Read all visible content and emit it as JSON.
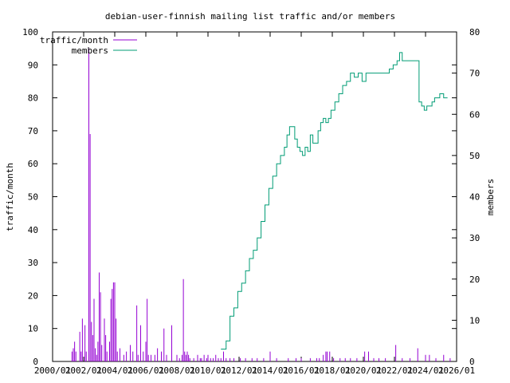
{
  "chart_data": {
    "type": "bar+line",
    "title": "debian-user-finnish mailing list traffic and/or members",
    "ylabel": "traffic/month",
    "y2label": "members",
    "ylim": [
      0,
      100
    ],
    "y2lim": [
      0,
      80
    ],
    "yticks": [
      "0",
      "10",
      "20",
      "30",
      "40",
      "50",
      "60",
      "70",
      "80",
      "90",
      "100"
    ],
    "y2ticks": [
      "0",
      "10",
      "20",
      "30",
      "40",
      "50",
      "60",
      "70",
      "80"
    ],
    "xticks": [
      "2000/01",
      "2002/01",
      "2004/01",
      "2006/01",
      "2008/01",
      "2010/01",
      "2012/01",
      "2014/01",
      "2016/01",
      "2018/01",
      "2020/01",
      "2022/01",
      "2024/01",
      "2026/01"
    ],
    "xrange": [
      "2000-01",
      "2026-01"
    ],
    "legend_placement": "top-left",
    "series": [
      {
        "name": "traffic/month",
        "style": "impulses",
        "color": "#9400d3",
        "points": [
          [
            "2001-04",
            3
          ],
          [
            "2001-05",
            4
          ],
          [
            "2001-06",
            6
          ],
          [
            "2001-07",
            3
          ],
          [
            "2001-10",
            9
          ],
          [
            "2001-11",
            3
          ],
          [
            "2001-12",
            13
          ],
          [
            "2002-02",
            11
          ],
          [
            "2002-03",
            3
          ],
          [
            "2002-05",
            95
          ],
          [
            "2002-06",
            69
          ],
          [
            "2002-07",
            12
          ],
          [
            "2002-08",
            8
          ],
          [
            "2002-09",
            19
          ],
          [
            "2002-10",
            4
          ],
          [
            "2002-11",
            2
          ],
          [
            "2002-12",
            6
          ],
          [
            "2003-01",
            27
          ],
          [
            "2003-02",
            21
          ],
          [
            "2003-03",
            5
          ],
          [
            "2003-05",
            13
          ],
          [
            "2003-06",
            8
          ],
          [
            "2003-07",
            3
          ],
          [
            "2003-09",
            6
          ],
          [
            "2003-10",
            19
          ],
          [
            "2003-11",
            22
          ],
          [
            "2003-12",
            24
          ],
          [
            "2004-01",
            24
          ],
          [
            "2004-02",
            13
          ],
          [
            "2004-03",
            3
          ],
          [
            "2004-05",
            4
          ],
          [
            "2004-08",
            2
          ],
          [
            "2004-10",
            3
          ],
          [
            "2005-01",
            5
          ],
          [
            "2005-03",
            3
          ],
          [
            "2005-06",
            17
          ],
          [
            "2005-07",
            2
          ],
          [
            "2005-09",
            11
          ],
          [
            "2005-11",
            3
          ],
          [
            "2006-01",
            6
          ],
          [
            "2006-02",
            19
          ],
          [
            "2006-03",
            2
          ],
          [
            "2006-05",
            2
          ],
          [
            "2006-08",
            2
          ],
          [
            "2006-10",
            4
          ],
          [
            "2007-01",
            3
          ],
          [
            "2007-03",
            10
          ],
          [
            "2007-05",
            2
          ],
          [
            "2007-09",
            11
          ],
          [
            "2008-01",
            2
          ],
          [
            "2008-03",
            1
          ],
          [
            "2008-05",
            2
          ],
          [
            "2008-06",
            25
          ],
          [
            "2008-07",
            3
          ],
          [
            "2008-08",
            2
          ],
          [
            "2008-09",
            3
          ],
          [
            "2008-10",
            2
          ],
          [
            "2008-11",
            1
          ],
          [
            "2009-02",
            1
          ],
          [
            "2009-05",
            2
          ],
          [
            "2009-07",
            1
          ],
          [
            "2009-08",
            1
          ],
          [
            "2009-10",
            2
          ],
          [
            "2009-12",
            1
          ],
          [
            "2010-01",
            2
          ],
          [
            "2010-03",
            1
          ],
          [
            "2010-05",
            1
          ],
          [
            "2010-07",
            2
          ],
          [
            "2010-09",
            1
          ],
          [
            "2010-11",
            1
          ],
          [
            "2011-01",
            3
          ],
          [
            "2011-03",
            1
          ],
          [
            "2011-06",
            1
          ],
          [
            "2011-09",
            1
          ],
          [
            "2012-02",
            1
          ],
          [
            "2012-06",
            1
          ],
          [
            "2012-11",
            1
          ],
          [
            "2013-03",
            1
          ],
          [
            "2013-08",
            1
          ],
          [
            "2014-01",
            3
          ],
          [
            "2014-06",
            1
          ],
          [
            "2015-03",
            1
          ],
          [
            "2015-09",
            1
          ],
          [
            "2016-01",
            1
          ],
          [
            "2016-08",
            1
          ],
          [
            "2017-01",
            1
          ],
          [
            "2017-03",
            1
          ],
          [
            "2017-06",
            2
          ],
          [
            "2017-08",
            3
          ],
          [
            "2017-09",
            3
          ],
          [
            "2017-11",
            3
          ],
          [
            "2018-02",
            1
          ],
          [
            "2018-07",
            1
          ],
          [
            "2018-11",
            1
          ],
          [
            "2019-03",
            1
          ],
          [
            "2019-08",
            1
          ],
          [
            "2020-02",
            3
          ],
          [
            "2020-05",
            3
          ],
          [
            "2020-09",
            1
          ],
          [
            "2021-01",
            1
          ],
          [
            "2021-06",
            1
          ],
          [
            "2022-02",
            5
          ],
          [
            "2022-07",
            1
          ],
          [
            "2023-01",
            1
          ],
          [
            "2023-07",
            4
          ],
          [
            "2024-01",
            2
          ],
          [
            "2024-04",
            2
          ],
          [
            "2024-09",
            1
          ],
          [
            "2025-03",
            2
          ],
          [
            "2025-08",
            1
          ]
        ]
      },
      {
        "name": "members",
        "style": "steps",
        "color": "#009c75",
        "points": [
          [
            "2010-11",
            3
          ],
          [
            "2011-03",
            5
          ],
          [
            "2011-06",
            11
          ],
          [
            "2011-09",
            13
          ],
          [
            "2011-12",
            17
          ],
          [
            "2012-03",
            19
          ],
          [
            "2012-06",
            22
          ],
          [
            "2012-09",
            25
          ],
          [
            "2012-12",
            27
          ],
          [
            "2013-03",
            30
          ],
          [
            "2013-06",
            34
          ],
          [
            "2013-09",
            38
          ],
          [
            "2013-12",
            42
          ],
          [
            "2014-03",
            45
          ],
          [
            "2014-06",
            48
          ],
          [
            "2014-09",
            50
          ],
          [
            "2014-12",
            52
          ],
          [
            "2015-02",
            55
          ],
          [
            "2015-04",
            57
          ],
          [
            "2015-06",
            57
          ],
          [
            "2015-08",
            54
          ],
          [
            "2015-10",
            52
          ],
          [
            "2015-12",
            51
          ],
          [
            "2016-02",
            50
          ],
          [
            "2016-04",
            52
          ],
          [
            "2016-06",
            51
          ],
          [
            "2016-08",
            55
          ],
          [
            "2016-10",
            53
          ],
          [
            "2016-12",
            53
          ],
          [
            "2017-02",
            56
          ],
          [
            "2017-04",
            58
          ],
          [
            "2017-06",
            59
          ],
          [
            "2017-08",
            58
          ],
          [
            "2017-10",
            59
          ],
          [
            "2017-12",
            61
          ],
          [
            "2018-03",
            63
          ],
          [
            "2018-06",
            65
          ],
          [
            "2018-09",
            67
          ],
          [
            "2018-12",
            68
          ],
          [
            "2019-03",
            70
          ],
          [
            "2019-06",
            69
          ],
          [
            "2019-09",
            70
          ],
          [
            "2019-12",
            68
          ],
          [
            "2020-03",
            70
          ],
          [
            "2020-06",
            70
          ],
          [
            "2020-09",
            70
          ],
          [
            "2020-12",
            70
          ],
          [
            "2021-03",
            70
          ],
          [
            "2021-06",
            70
          ],
          [
            "2021-09",
            71
          ],
          [
            "2021-12",
            72
          ],
          [
            "2022-03",
            73
          ],
          [
            "2022-05",
            75
          ],
          [
            "2022-07",
            73
          ],
          [
            "2022-09",
            73
          ],
          [
            "2022-12",
            73
          ],
          [
            "2023-03",
            73
          ],
          [
            "2023-06",
            73
          ],
          [
            "2023-08",
            63
          ],
          [
            "2023-10",
            62
          ],
          [
            "2023-12",
            61
          ],
          [
            "2024-02",
            62
          ],
          [
            "2024-04",
            62
          ],
          [
            "2024-06",
            63
          ],
          [
            "2024-08",
            64
          ],
          [
            "2024-10",
            64
          ],
          [
            "2024-12",
            65
          ],
          [
            "2025-03",
            64
          ],
          [
            "2025-06",
            64
          ]
        ]
      }
    ]
  }
}
